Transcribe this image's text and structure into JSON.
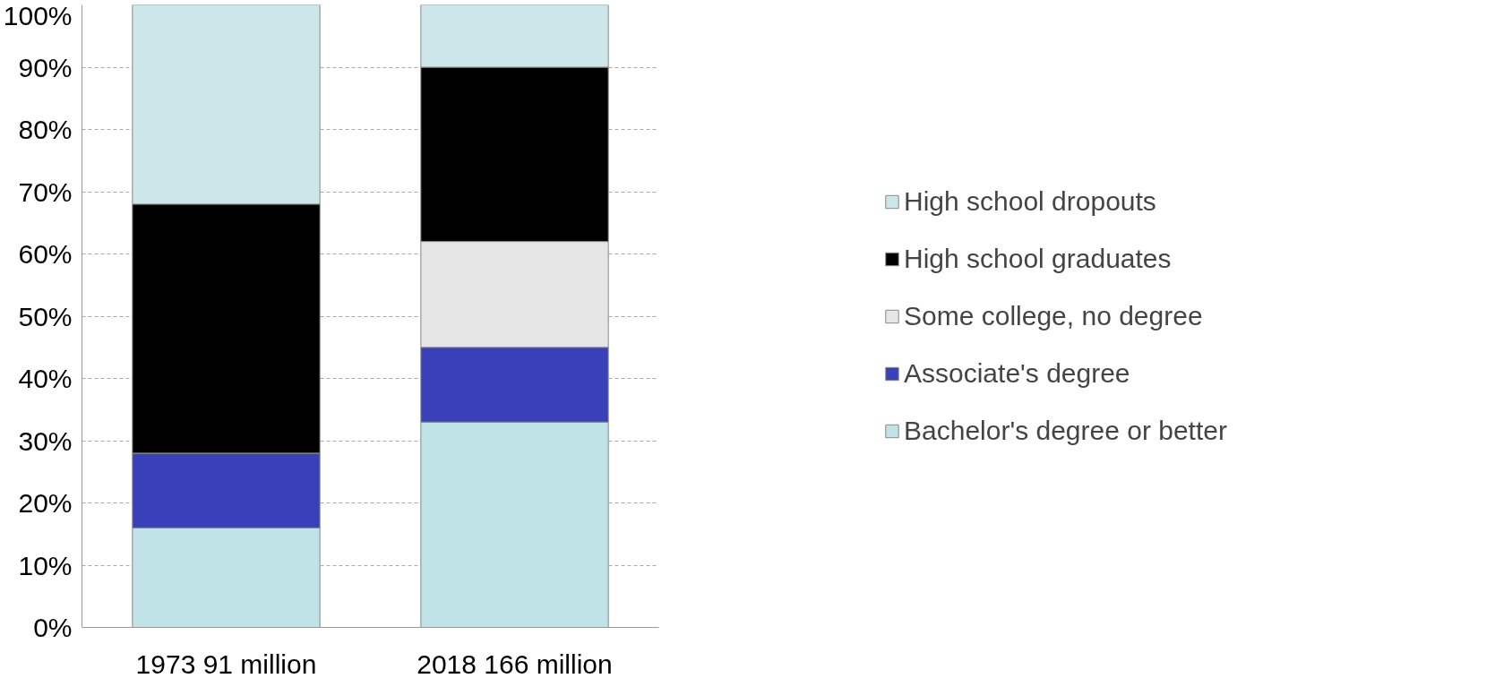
{
  "chart_data": {
    "type": "bar",
    "stacked": true,
    "categories": [
      "1973 91 million",
      "2018 166 million"
    ],
    "series": [
      {
        "name": "Bachelor's degree or better",
        "color": "#bfe3e6",
        "values": [
          16,
          33
        ]
      },
      {
        "name": "Associate's degree",
        "color": "#3a40b8",
        "values": [
          12,
          12
        ]
      },
      {
        "name": "Some college, no degree",
        "color": "#e6e6e6",
        "values": [
          0,
          17
        ]
      },
      {
        "name": "High school graduates",
        "color": "#000000",
        "values": [
          40,
          28
        ]
      },
      {
        "name": "High school dropouts",
        "color": "#cde6ea",
        "values": [
          32,
          10
        ]
      }
    ],
    "ylim": [
      0,
      100
    ],
    "yticks": [
      {
        "value": 0,
        "label": "0%"
      },
      {
        "value": 10,
        "label": "10%"
      },
      {
        "value": 20,
        "label": "20%"
      },
      {
        "value": 30,
        "label": "30%"
      },
      {
        "value": 40,
        "label": "40%"
      },
      {
        "value": 50,
        "label": "50%"
      },
      {
        "value": 60,
        "label": "60%"
      },
      {
        "value": 70,
        "label": "70%"
      },
      {
        "value": 80,
        "label": "80%"
      },
      {
        "value": 90,
        "label": "90%"
      },
      {
        "value": 100,
        "label": "100%"
      }
    ],
    "grid": "y",
    "legend": "right"
  }
}
